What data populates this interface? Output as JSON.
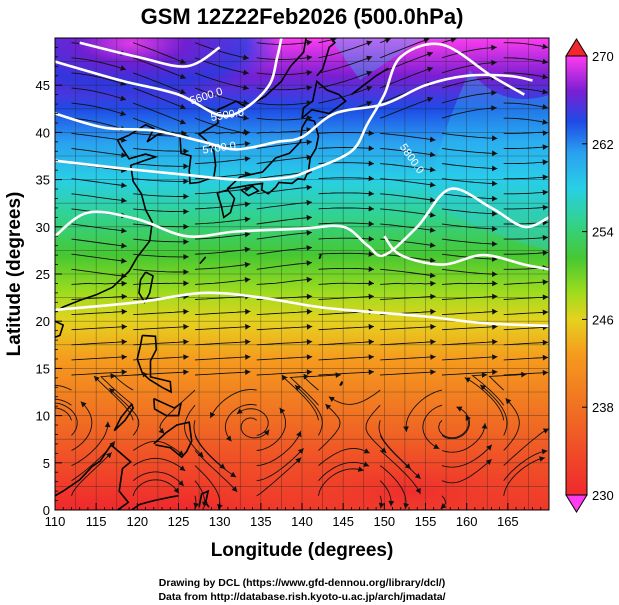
{
  "title": "GSM 12Z22Feb2026 (500.0hPa)",
  "xlabel": "Longitude (degrees)",
  "ylabel": "Latitude  (degrees)",
  "credits": [
    "Drawing by DCL (https://www.gfd-dennou.org/library/dcl/)",
    "Data from http://database.rish.kyoto-u.ac.jp/arch/jmadata/"
  ],
  "map_extent": {
    "lon": [
      110,
      170
    ],
    "lat": [
      0,
      50
    ]
  },
  "x_ticks": [
    "110",
    "115",
    "120",
    "125",
    "130",
    "135",
    "140",
    "145",
    "150",
    "155",
    "160",
    "165"
  ],
  "y_ticks": [
    "0",
    "5",
    "10",
    "15",
    "20",
    "25",
    "30",
    "35",
    "40",
    "45"
  ],
  "colorbar": {
    "tick_labels": [
      "270",
      "262",
      "254",
      "246",
      "238",
      "230"
    ],
    "tick_values": [
      270,
      262,
      254,
      246,
      238,
      230
    ],
    "range": [
      230,
      270
    ],
    "stops": [
      {
        "value": 230,
        "color": "#ff3cf0"
      },
      {
        "value": 234,
        "color": "#9a1ed2"
      },
      {
        "value": 238,
        "color": "#1e28d2"
      },
      {
        "value": 242,
        "color": "#1e82f5"
      },
      {
        "value": 246,
        "color": "#28d2f0"
      },
      {
        "value": 250,
        "color": "#28dc8c"
      },
      {
        "value": 254,
        "color": "#32c828"
      },
      {
        "value": 258,
        "color": "#a5e01e"
      },
      {
        "value": 262,
        "color": "#f5c81e"
      },
      {
        "value": 266,
        "color": "#f57814"
      },
      {
        "value": 270,
        "color": "#f0282d"
      }
    ]
  },
  "contour_labels": [
    "5600.0",
    "5500.0",
    "5700.0",
    "5800.0"
  ],
  "contours": [
    {
      "value": "5400",
      "points": [
        [
          113,
          49.5
        ],
        [
          120,
          48
        ],
        [
          126,
          47
        ],
        [
          130,
          49
        ]
      ]
    },
    {
      "value": "5500",
      "points": [
        [
          110,
          47.5
        ],
        [
          118,
          45.5
        ],
        [
          125,
          44
        ],
        [
          130,
          41.8
        ],
        [
          133,
          42.5
        ],
        [
          136,
          45
        ],
        [
          137,
          48
        ],
        [
          137.5,
          50
        ]
      ]
    },
    {
      "value": "5600",
      "points": [
        [
          110,
          42
        ],
        [
          116,
          40.5
        ],
        [
          122,
          40.2
        ],
        [
          128,
          39
        ],
        [
          132,
          38.2
        ],
        [
          137,
          39
        ],
        [
          140,
          39.5
        ],
        [
          144,
          42
        ],
        [
          150,
          43
        ],
        [
          155,
          45
        ],
        [
          160,
          46
        ],
        [
          165,
          46
        ],
        [
          168,
          45.5
        ]
      ]
    },
    {
      "value": "5700",
      "points": [
        [
          110,
          37
        ],
        [
          118,
          36.2
        ],
        [
          126,
          35.5
        ],
        [
          132,
          35
        ],
        [
          138,
          35.2
        ],
        [
          141,
          36
        ],
        [
          146,
          38
        ],
        [
          148,
          41
        ],
        [
          150,
          44
        ],
        [
          152,
          48
        ],
        [
          157,
          49.3
        ],
        [
          163,
          46
        ],
        [
          167,
          44
        ]
      ]
    },
    {
      "value": "5800",
      "points": [
        [
          110,
          29
        ],
        [
          114,
          31.5
        ],
        [
          120,
          30.8
        ],
        [
          126,
          29
        ],
        [
          132,
          29.5
        ],
        [
          140,
          29.8
        ],
        [
          145,
          30
        ],
        [
          148,
          28
        ],
        [
          150,
          27
        ],
        [
          154,
          30
        ],
        [
          158,
          34
        ],
        [
          163,
          32
        ],
        [
          167,
          30
        ],
        [
          170,
          31
        ]
      ]
    },
    {
      "value": "5850",
      "points": [
        [
          150,
          29
        ],
        [
          152,
          27
        ],
        [
          157,
          26
        ],
        [
          162,
          27
        ],
        [
          167,
          26
        ],
        [
          170,
          25.5
        ]
      ]
    },
    {
      "value": "5900",
      "points": [
        [
          110,
          21.2
        ],
        [
          120,
          22
        ],
        [
          128,
          23
        ],
        [
          135,
          22.5
        ],
        [
          142,
          21.5
        ],
        [
          148,
          21
        ],
        [
          155,
          20.5
        ],
        [
          162,
          19.8
        ],
        [
          170,
          19.5
        ]
      ]
    }
  ]
}
